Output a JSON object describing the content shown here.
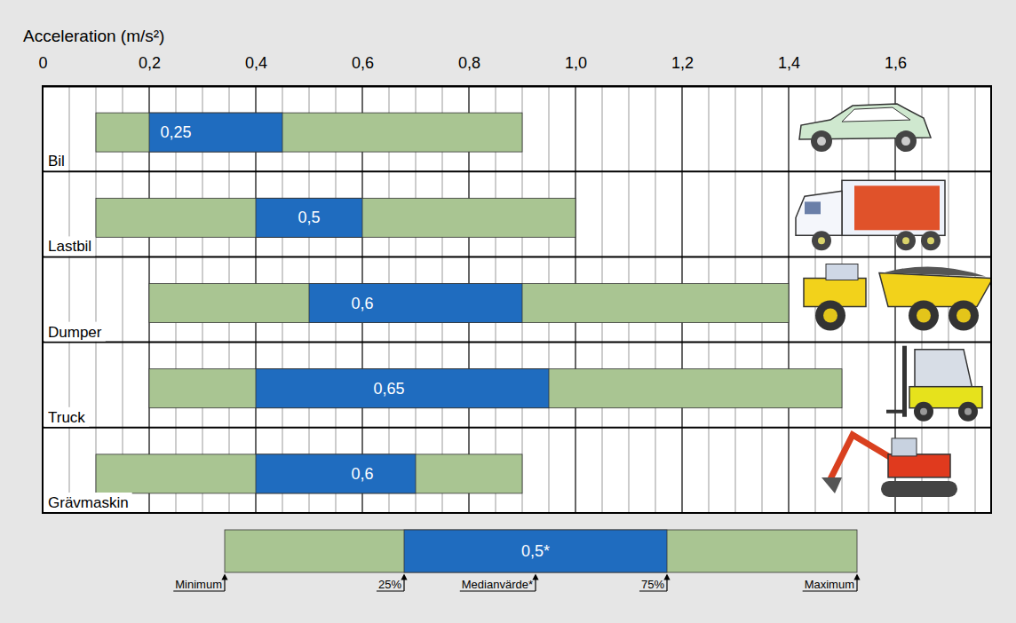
{
  "chart_data": {
    "type": "box",
    "orientation": "horizontal",
    "x_label": "Acceleration (m/s²)",
    "categories": [
      "Bil",
      "Lastbil",
      "Dumper",
      "Truck",
      "Grävmaskin"
    ],
    "min": [
      0.1,
      0.1,
      0.2,
      0.2,
      0.1
    ],
    "q1": [
      0.2,
      0.4,
      0.5,
      0.4,
      0.4
    ],
    "median": [
      0.25,
      0.5,
      0.6,
      0.65,
      0.6
    ],
    "value_labels": [
      "0,25",
      "0,5",
      "0,6",
      "0,65",
      "0,6"
    ],
    "q3": [
      0.45,
      0.6,
      0.9,
      0.95,
      0.7
    ],
    "max": [
      0.9,
      1.0,
      1.4,
      1.5,
      0.9
    ],
    "xlim": [
      0,
      1.78
    ],
    "xticks": [
      0,
      {
        "value": 0.2,
        "label": "0,2"
      },
      {
        "value": 0.4,
        "label": "0,4"
      },
      {
        "value": 0.6,
        "label": "0,6"
      },
      {
        "value": 0.8,
        "label": "0,8"
      },
      {
        "value": 1.0,
        "label": "1,0"
      },
      {
        "value": 1.2,
        "label": "1,2"
      },
      {
        "value": 1.4,
        "label": "1,4"
      },
      {
        "value": 1.6,
        "label": "1,6"
      }
    ],
    "minor_xticks": [
      0.05,
      0.1,
      0.15,
      0.25,
      0.3,
      0.35,
      0.45,
      0.5,
      0.55,
      0.65,
      0.7,
      0.75,
      0.85,
      0.9,
      0.95,
      1.05,
      1.1,
      1.15,
      1.25,
      1.3,
      1.35,
      1.45,
      1.5,
      1.55,
      1.65,
      1.7,
      1.75
    ],
    "grid": true,
    "data_labels": true,
    "colors": [
      "#a9c592",
      "#1f6cbf"
    ],
    "legend": "bottom",
    "legend_example": {
      "label": "0,5*",
      "keys": [
        "Minimum",
        "25%",
        "Medianvärde*",
        "75%",
        "Maximum"
      ]
    }
  }
}
